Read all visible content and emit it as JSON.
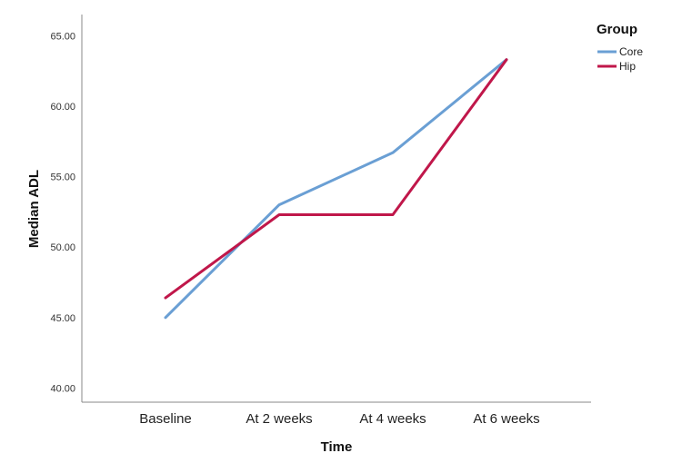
{
  "chart_data": {
    "type": "line",
    "categories": [
      "Baseline",
      "At 2 weeks",
      "At 4 weeks",
      "At 6 weeks"
    ],
    "series": [
      {
        "name": "Core",
        "values": [
          45.0,
          53.0,
          56.7,
          63.3
        ],
        "color": "#6a9fd4"
      },
      {
        "name": "Hip",
        "values": [
          46.4,
          52.3,
          52.3,
          63.3
        ],
        "color": "#c0174a"
      }
    ],
    "xlabel": "Time",
    "ylabel": "Median ADL",
    "ylim": [
      39,
      66.5
    ],
    "yticks": [
      40,
      45,
      50,
      55,
      60,
      65
    ],
    "ytick_labels": [
      "40.00",
      "45.00",
      "50.00",
      "55.00",
      "60.00",
      "65.00"
    ],
    "legend_title": "Group",
    "legend_position": "top-right",
    "grid": false
  }
}
